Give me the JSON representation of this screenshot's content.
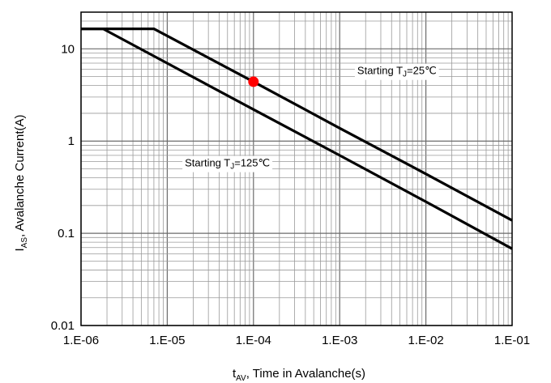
{
  "chart_data": {
    "type": "line",
    "x_scale": "log",
    "y_scale": "log",
    "xlim": [
      1e-06,
      0.1
    ],
    "ylim": [
      0.01,
      25
    ],
    "grid": true,
    "x_ticks": [
      {
        "value": 1e-06,
        "label": "1.E-06"
      },
      {
        "value": 1e-05,
        "label": "1.E-05"
      },
      {
        "value": 0.0001,
        "label": "1.E-04"
      },
      {
        "value": 0.001,
        "label": "1.E-03"
      },
      {
        "value": 0.01,
        "label": "1.E-02"
      },
      {
        "value": 0.1,
        "label": "1.E-01"
      }
    ],
    "y_ticks": [
      {
        "value": 0.01,
        "label": "0.01"
      },
      {
        "value": 0.1,
        "label": "0.1"
      },
      {
        "value": 1,
        "label": "1"
      },
      {
        "value": 10,
        "label": "10"
      }
    ],
    "xlabel": {
      "main": "t",
      "sub": "AV",
      "rest": ", Time in Avalanche(s)"
    },
    "ylabel": {
      "main": "I",
      "sub": "AS",
      "rest": ", Avalanche  Current(A)"
    },
    "series": [
      {
        "x": [
          1e-06,
          7e-06,
          0.0001,
          0.001,
          0.01,
          0.1
        ],
        "y": [
          16.5,
          16.5,
          4.4,
          1.38,
          0.44,
          0.138
        ],
        "color": "#000000"
      },
      {
        "x": [
          1e-06,
          1.8e-06,
          0.0001,
          0.001,
          0.01,
          0.1
        ],
        "y": [
          16.5,
          16.5,
          2.2,
          0.7,
          0.22,
          0.068
        ],
        "color": "#000000"
      }
    ],
    "annotations": [
      {
        "prefix": "Starting T",
        "sub": "J",
        "suffix": "=25℃",
        "x": 0.0016,
        "y": 5.3
      },
      {
        "prefix": "Starting T",
        "sub": "J",
        "suffix": "=125℃",
        "x": 1.6e-05,
        "y": 0.53
      }
    ],
    "marker": {
      "x": 0.0001,
      "y": 4.4,
      "color": "#ff0000"
    }
  }
}
